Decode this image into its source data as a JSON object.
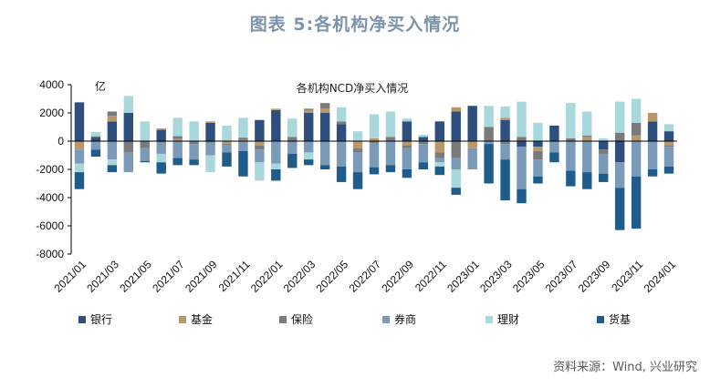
{
  "page": {
    "title": "图表 5:各机构净买入情况",
    "source": "资料来源：Wind, 兴业研究"
  },
  "chart_data": {
    "type": "bar",
    "stacked": true,
    "title": "各机构NCD净买入情况",
    "unit": "亿",
    "xlabel": "",
    "ylabel": "",
    "ylim": [
      -8000,
      4000
    ],
    "yticks": [
      4000,
      2000,
      0,
      -2000,
      -4000,
      -6000,
      -8000
    ],
    "grid": false,
    "legend_position": "bottom",
    "categories": [
      "2021/01",
      "2021/02",
      "2021/03",
      "2021/04",
      "2021/05",
      "2021/06",
      "2021/07",
      "2021/08",
      "2021/09",
      "2021/10",
      "2021/11",
      "2021/12",
      "2022/01",
      "2022/02",
      "2022/03",
      "2022/04",
      "2022/05",
      "2022/06",
      "2022/07",
      "2022/08",
      "2022/09",
      "2022/10",
      "2022/11",
      "2022/12",
      "2023/01",
      "2023/02",
      "2023/03",
      "2023/04",
      "2023/05",
      "2023/06",
      "2023/07",
      "2023/08",
      "2023/09",
      "2023/10",
      "2023/11",
      "2023/12",
      "2024/01"
    ],
    "x_tick_labels": [
      "2021/01",
      "2021/03",
      "2021/05",
      "2021/07",
      "2021/09",
      "2021/11",
      "2022/01",
      "2022/03",
      "2022/05",
      "2022/07",
      "2022/09",
      "2022/11",
      "2023/01",
      "2023/03",
      "2023/05",
      "2023/07",
      "2023/09",
      "2023/11",
      "2024/01"
    ],
    "series": [
      {
        "name": "银行",
        "color": "#2e4e7e",
        "values": [
          2750,
          300,
          1400,
          2000,
          0,
          800,
          0,
          0,
          1300,
          0,
          0,
          1500,
          2200,
          0,
          2000,
          2000,
          1200,
          0,
          0,
          0,
          1400,
          300,
          1400,
          2100,
          2500,
          0,
          1500,
          -400,
          -400,
          1100,
          0,
          0,
          -600,
          -1500,
          0,
          1400,
          700
        ]
      },
      {
        "name": "基金",
        "color": "#b8976a",
        "values": [
          -600,
          50,
          400,
          0,
          0,
          100,
          150,
          0,
          100,
          -200,
          100,
          -300,
          100,
          0,
          200,
          300,
          0,
          -500,
          200,
          0,
          -300,
          0,
          -800,
          300,
          -500,
          0,
          150,
          0,
          -300,
          0,
          0,
          300,
          0,
          0,
          400,
          600,
          -300
        ]
      },
      {
        "name": "保险",
        "color": "#7a7a7a",
        "values": [
          0,
          0,
          300,
          -800,
          -500,
          -100,
          200,
          -200,
          -100,
          -100,
          150,
          -300,
          0,
          300,
          100,
          400,
          200,
          -300,
          -150,
          300,
          -200,
          -200,
          -400,
          -1200,
          0,
          1000,
          -200,
          300,
          -600,
          0,
          200,
          100,
          -300,
          600,
          900,
          0,
          -100
        ]
      },
      {
        "name": "券商",
        "color": "#7a9ab8",
        "values": [
          -1000,
          -600,
          -1300,
          -1400,
          -900,
          -800,
          -1200,
          -1100,
          -900,
          -500,
          -700,
          -900,
          -1600,
          -900,
          -800,
          -1700,
          -1800,
          -1400,
          -1700,
          -1700,
          -1500,
          -1300,
          -300,
          -800,
          -1500,
          -200,
          -1100,
          -3000,
          -1200,
          -800,
          -2100,
          -2200,
          -1400,
          -1800,
          -2500,
          -2000,
          -1400
        ]
      },
      {
        "name": "理财",
        "color": "#a8d8dc",
        "values": [
          -600,
          300,
          -400,
          1200,
          1400,
          -600,
          1300,
          1400,
          -1200,
          1100,
          1400,
          -1300,
          -400,
          1300,
          -500,
          0,
          1000,
          700,
          1700,
          1800,
          200,
          150,
          -300,
          -1300,
          0,
          1500,
          800,
          2500,
          1300,
          0,
          2500,
          1700,
          200,
          2200,
          1700,
          0,
          500
        ]
      },
      {
        "name": "货基",
        "color": "#1f5c8b",
        "values": [
          -1200,
          -500,
          -500,
          0,
          -100,
          -800,
          -500,
          -400,
          0,
          -1000,
          -1800,
          0,
          -800,
          -1000,
          -400,
          -300,
          -1100,
          -1200,
          -500,
          -500,
          -600,
          -500,
          -600,
          -500,
          0,
          -2800,
          -2900,
          -1000,
          -500,
          -700,
          -1100,
          -1200,
          -600,
          -3000,
          -3700,
          -500,
          -500
        ]
      }
    ]
  }
}
